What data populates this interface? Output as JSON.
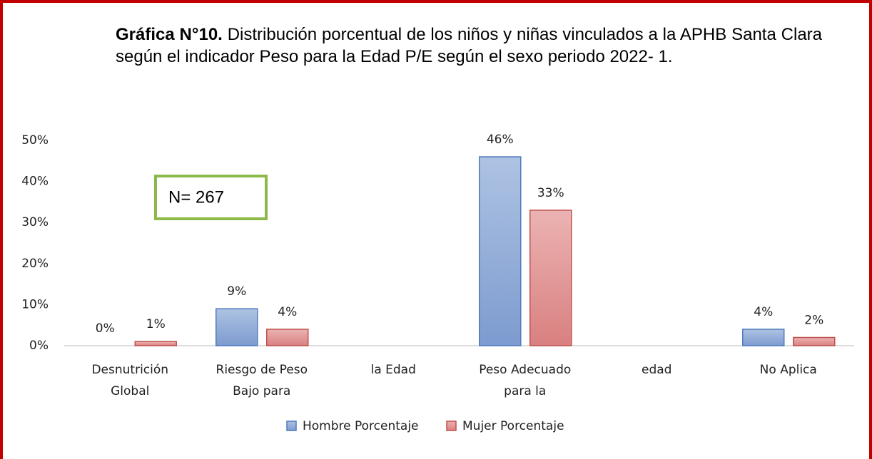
{
  "chart_data": {
    "type": "bar",
    "title_label": "Gráfica N°10.",
    "title": "Distribución porcentual de los niños y niñas vinculados a la  APHB Santa Clara según el indicador  Peso para la Edad P/E según el sexo periodo 2022- 1.",
    "annotation": "N= 267",
    "categories": [
      [
        "Desnutrición",
        "Global"
      ],
      [
        "Riesgo de Peso",
        "Bajo para"
      ],
      [
        "la Edad"
      ],
      [
        "Peso Adecuado",
        "para la"
      ],
      [
        "edad"
      ],
      [
        "No Aplica"
      ]
    ],
    "series": [
      {
        "name": "Hombre Porcentaje",
        "color": "#95b0da",
        "values": [
          0,
          9,
          null,
          46,
          null,
          4
        ],
        "value_labels": [
          "0%",
          "9%",
          null,
          "46%",
          null,
          "4%"
        ]
      },
      {
        "name": "Mujer Porcentaje",
        "color": "#e09a99",
        "values": [
          1,
          4,
          null,
          33,
          null,
          2
        ],
        "value_labels": [
          "1%",
          "4%",
          null,
          "33%",
          null,
          "2%"
        ]
      }
    ],
    "ylim": [
      0,
      50
    ],
    "yticks": [
      {
        "value": 0,
        "label": "0%"
      },
      {
        "value": 10,
        "label": "10%"
      },
      {
        "value": 20,
        "label": "20%"
      },
      {
        "value": 30,
        "label": "30%"
      },
      {
        "value": 40,
        "label": "40%"
      },
      {
        "value": 50,
        "label": "50%"
      }
    ],
    "legend": "bottom"
  }
}
